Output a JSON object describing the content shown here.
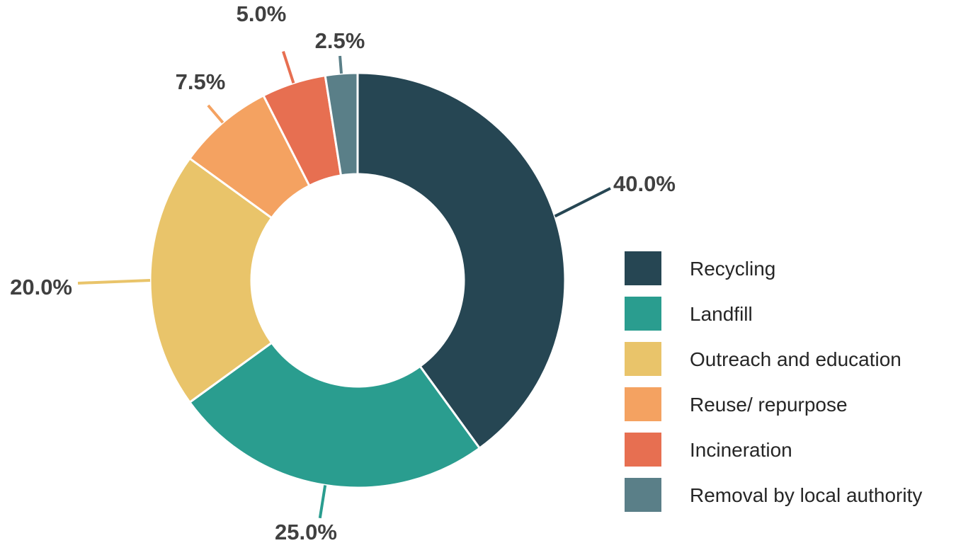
{
  "chart_data": {
    "type": "pie",
    "donut": true,
    "title": "",
    "start_angle_deg": 0,
    "direction": "clockwise",
    "slices": [
      {
        "label": "Recycling",
        "value": 40.0,
        "data_label": "40.0%",
        "color": "#264653"
      },
      {
        "label": "Landfill",
        "value": 25.0,
        "data_label": "25.0%",
        "color": "#2a9d8f"
      },
      {
        "label": "Outreach and education",
        "value": 20.0,
        "data_label": "20.0%",
        "color": "#e9c46a"
      },
      {
        "label": "Reuse/ repurpose",
        "value": 7.5,
        "data_label": "7.5%",
        "color": "#f4a261"
      },
      {
        "label": "Incineration",
        "value": 5.0,
        "data_label": "5.0%",
        "color": "#e76f51"
      },
      {
        "label": "Removal by local authority",
        "value": 2.5,
        "data_label": "2.5%",
        "color": "#5a7f88"
      }
    ],
    "legend": {
      "position": "right-bottom"
    },
    "data_labels": "outside with leader lines"
  }
}
